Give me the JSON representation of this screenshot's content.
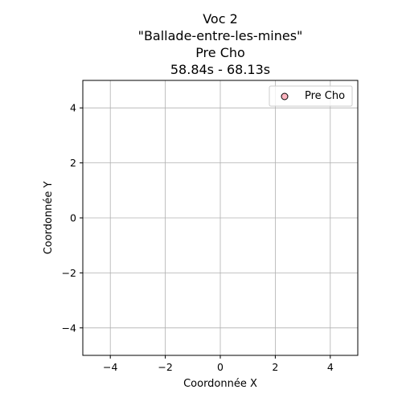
{
  "chart_data": {
    "type": "scatter",
    "title_lines": [
      "Voc 2",
      "\"Ballade-entre-les-mines\"",
      "Pre Cho",
      "58.84s - 68.13s"
    ],
    "xlabel": "Coordonnée X",
    "ylabel": "Coordonnée Y",
    "xlim": [
      -5,
      5
    ],
    "ylim": [
      -5,
      5
    ],
    "xticks": [
      -4,
      -2,
      0,
      2,
      4
    ],
    "yticks": [
      -4,
      -2,
      0,
      2,
      4
    ],
    "grid": true,
    "legend_position": "top-right",
    "series": [
      {
        "name": "Pre Cho",
        "color": "#ffb6c1",
        "edge_color": "#000000",
        "points": []
      }
    ]
  }
}
